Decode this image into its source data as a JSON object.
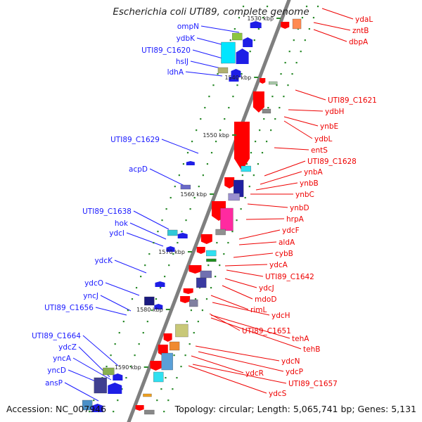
{
  "title": "Escherichia coli UTI89, complete genome",
  "footer": {
    "accession": "Accession: NC_007946",
    "topology": "Topology: circular; Length: 5,065,741 bp; Genes: 5,131"
  },
  "colors": {
    "forward_label": "#1a1aff",
    "reverse_label": "#ee0000",
    "backbone": "#7f7f7f",
    "tick": "#2a8a2a"
  },
  "ticks": [
    "1530 kbp",
    "1540 kbp",
    "1550 kbp",
    "1560 kbp",
    "1570 kbp",
    "1580 kbp",
    "1590 kbp"
  ],
  "left_genes": [
    "ompN",
    "ydbK",
    "UTI89_C1620",
    "hslJ",
    "ldhA",
    "UTI89_C1629",
    "acpD",
    "UTI89_C1638",
    "hok",
    "ydcI",
    "ydcK",
    "ydcO",
    "yncJ",
    "UTI89_C1656",
    "UTI89_C1664",
    "ydcZ",
    "yncA",
    "yncD",
    "ansP"
  ],
  "right_genes": [
    "ydaL",
    "zntB",
    "dbpA",
    "UTI89_C1621",
    "ydbH",
    "ynbE",
    "ydbL",
    "entS",
    "UTI89_C1628",
    "ynbA",
    "ynbB",
    "ynbC",
    "ynbD",
    "hrpA",
    "ydcF",
    "aldA",
    "cybB",
    "ydcA",
    "UTI89_C1642",
    "ydcJ",
    "mdoD",
    "rimL",
    "ydcH",
    "UTI89_C1651",
    "tehA",
    "tehB",
    "ydcN",
    "ydcP",
    "ydcR",
    "UTI89_C1657",
    "ydcS"
  ]
}
